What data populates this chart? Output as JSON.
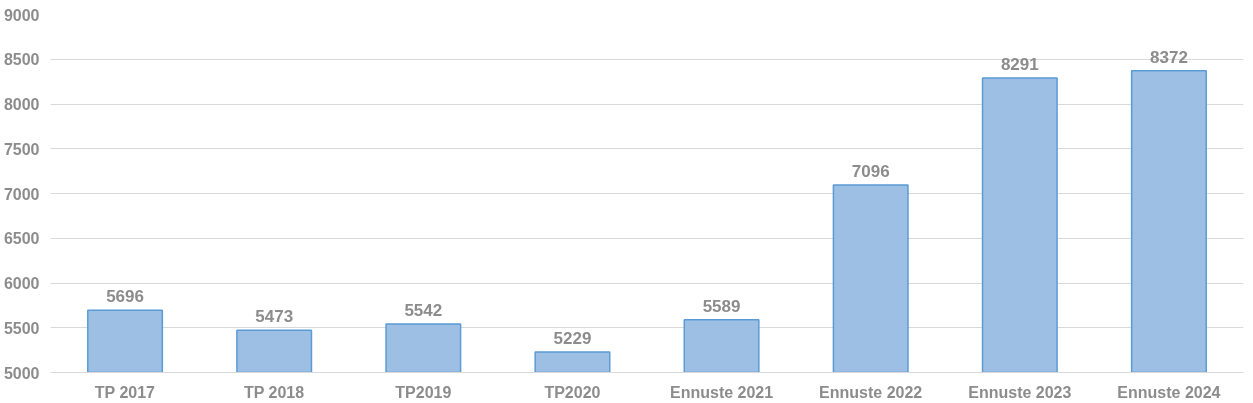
{
  "chart_data": {
    "type": "bar",
    "categories": [
      "TP 2017",
      "TP 2018",
      "TP2019",
      "TP2020",
      "Ennuste 2021",
      "Ennuste 2022",
      "Ennuste 2023",
      "Ennuste 2024"
    ],
    "values": [
      5696,
      5473,
      5542,
      5229,
      5589,
      7096,
      8291,
      8372
    ],
    "color": "#9dbfe4",
    "ylim": [
      5000,
      9000
    ],
    "yticks": [
      5000,
      5500,
      6000,
      6500,
      7000,
      7500,
      8000,
      8500,
      9000
    ],
    "grid": "y",
    "data_labels": true
  }
}
